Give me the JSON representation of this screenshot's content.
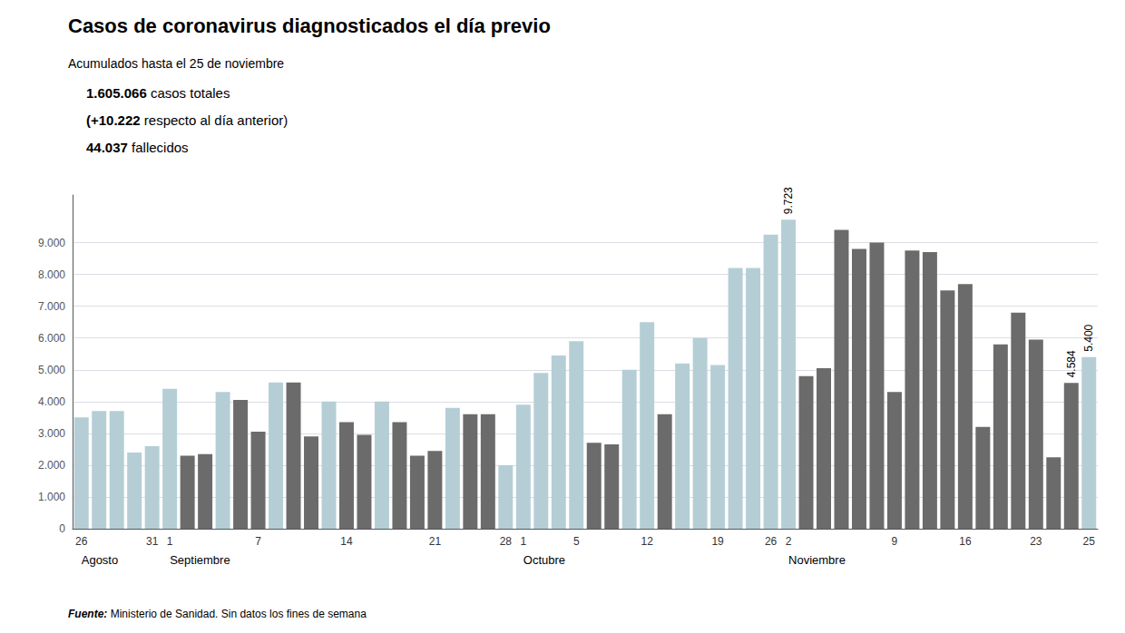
{
  "chart_data": {
    "type": "bar",
    "title": "Casos de coronavirus diagnosticados el día previo",
    "subtitle": [
      "Acumulados hasta el 25 de noviembre",
      "1.605.066 casos totales",
      "(+10.222 respecto al día anterior)",
      "44.037 fallecidos"
    ],
    "annotations": [
      {
        "text": "Agosto",
        "category_index": 0
      },
      {
        "text": "Septiembre",
        "category_index": 5
      },
      {
        "text": "Octubre",
        "category_index": 25
      },
      {
        "text": "Noviembre",
        "category_index": 40
      },
      {
        "text": "Fuente: Ministerio de Sanidad. Sin datos los fines de semana"
      }
    ],
    "categories": [
      "26",
      null,
      null,
      null,
      "31",
      "1",
      null,
      null,
      null,
      null,
      "7",
      null,
      null,
      null,
      null,
      "14",
      null,
      null,
      null,
      null,
      "21",
      null,
      null,
      null,
      "28",
      "1",
      null,
      null,
      "5",
      null,
      null,
      null,
      "12",
      null,
      null,
      null,
      "19",
      null,
      null,
      "26",
      "2",
      null,
      null,
      null,
      null,
      null,
      "9",
      null,
      null,
      null,
      "16",
      null,
      null,
      null,
      "23",
      null,
      null,
      "25"
    ],
    "values": [
      3500,
      3700,
      3700,
      2400,
      2600,
      4400,
      2300,
      2350,
      4300,
      4050,
      3050,
      4600,
      4600,
      2900,
      4000,
      3350,
      2950,
      4000,
      3350,
      2300,
      2450,
      3800,
      3600,
      3600,
      2000,
      3900,
      4900,
      5450,
      5900,
      2700,
      2650,
      5000,
      6500,
      3600,
      5200,
      6000,
      5150,
      8200,
      8200,
      9250,
      9723,
      4800,
      5050,
      9400,
      8800,
      9000,
      4300,
      8750,
      8700,
      7500,
      7700,
      3200,
      5800,
      6800,
      5950,
      2250,
      4584,
      5400
    ],
    "colors": [
      "#b5ced6",
      "#b5ced6",
      "#b5ced6",
      "#b5ced6",
      "#b5ced6",
      "#b5ced6",
      "#6b6b6b",
      "#6b6b6b",
      "#b5ced6",
      "#6b6b6b",
      "#6b6b6b",
      "#b5ced6",
      "#6b6b6b",
      "#6b6b6b",
      "#b5ced6",
      "#6b6b6b",
      "#6b6b6b",
      "#b5ced6",
      "#6b6b6b",
      "#6b6b6b",
      "#6b6b6b",
      "#b5ced6",
      "#6b6b6b",
      "#6b6b6b",
      "#b5ced6",
      "#b5ced6",
      "#b5ced6",
      "#b5ced6",
      "#b5ced6",
      "#6b6b6b",
      "#6b6b6b",
      "#b5ced6",
      "#b5ced6",
      "#6b6b6b",
      "#b5ced6",
      "#b5ced6",
      "#b5ced6",
      "#b5ced6",
      "#b5ced6",
      "#b5ced6",
      "#b5ced6",
      "#6b6b6b",
      "#6b6b6b",
      "#6b6b6b",
      "#6b6b6b",
      "#6b6b6b",
      "#6b6b6b",
      "#6b6b6b",
      "#6b6b6b",
      "#6b6b6b",
      "#6b6b6b",
      "#6b6b6b",
      "#6b6b6b",
      "#6b6b6b",
      "#6b6b6b",
      "#6b6b6b",
      "#6b6b6b",
      "#b5ced6"
    ],
    "data_labels": true,
    "value_labels": [
      null,
      null,
      null,
      null,
      null,
      null,
      null,
      null,
      null,
      null,
      null,
      null,
      null,
      null,
      null,
      null,
      null,
      null,
      null,
      null,
      null,
      null,
      null,
      null,
      null,
      null,
      null,
      null,
      null,
      null,
      null,
      null,
      null,
      null,
      null,
      null,
      null,
      null,
      null,
      null,
      "9.723",
      null,
      null,
      null,
      null,
      null,
      null,
      null,
      null,
      null,
      null,
      null,
      null,
      null,
      null,
      null,
      "4.584",
      "5.400"
    ],
    "ylim": [
      0,
      10500
    ],
    "yticks": [
      0,
      {
        "value": 1000,
        "label": "1.000"
      },
      {
        "value": 2000,
        "label": "2.000"
      },
      {
        "value": 3000,
        "label": "3.000"
      },
      {
        "value": 4000,
        "label": "4.000"
      },
      {
        "value": 5000,
        "label": "5.000"
      },
      {
        "value": 6000,
        "label": "6.000"
      },
      {
        "value": 7000,
        "label": "7.000"
      },
      {
        "value": 8000,
        "label": "8.000"
      },
      {
        "value": 9000,
        "label": "9.000"
      }
    ],
    "grid": true
  }
}
